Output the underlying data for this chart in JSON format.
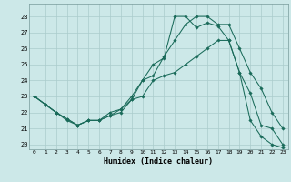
{
  "title": "",
  "xlabel": "Humidex (Indice chaleur)",
  "bg_color": "#cce8e8",
  "grid_color": "#aacccc",
  "line_color": "#1a6b5a",
  "xlim_min": -0.5,
  "xlim_max": 23.5,
  "ylim_min": 19.7,
  "ylim_max": 28.8,
  "yticks": [
    20,
    21,
    22,
    23,
    24,
    25,
    26,
    27,
    28
  ],
  "xticks": [
    0,
    1,
    2,
    3,
    4,
    5,
    6,
    7,
    8,
    9,
    10,
    11,
    12,
    13,
    14,
    15,
    16,
    17,
    18,
    19,
    20,
    21,
    22,
    23
  ],
  "line1_x": [
    0,
    1,
    2,
    3,
    4,
    5,
    6,
    7,
    8,
    9,
    10,
    11,
    12,
    13,
    14,
    15,
    16,
    17,
    18,
    19,
    20,
    21,
    22,
    23
  ],
  "line1_y": [
    23.0,
    22.5,
    22.0,
    21.6,
    21.2,
    21.5,
    21.5,
    21.8,
    22.0,
    22.8,
    24.0,
    25.0,
    25.4,
    28.0,
    28.0,
    27.3,
    27.6,
    27.4,
    26.5,
    24.5,
    23.2,
    21.2,
    21.0,
    20.0
  ],
  "line2_x": [
    0,
    1,
    2,
    3,
    4,
    5,
    6,
    7,
    8,
    9,
    10,
    11,
    12,
    13,
    14,
    15,
    16,
    17,
    18,
    19,
    20,
    21,
    22,
    23
  ],
  "line2_y": [
    23.0,
    22.5,
    22.0,
    21.6,
    21.2,
    21.5,
    21.5,
    21.8,
    22.2,
    23.0,
    24.0,
    24.3,
    25.5,
    26.5,
    27.5,
    28.0,
    28.0,
    27.5,
    27.5,
    26.0,
    24.5,
    23.5,
    22.0,
    21.0
  ],
  "line3_x": [
    0,
    1,
    2,
    3,
    4,
    5,
    6,
    7,
    8,
    9,
    10,
    11,
    12,
    13,
    14,
    15,
    16,
    17,
    18,
    19,
    20,
    21,
    22,
    23
  ],
  "line3_y": [
    23.0,
    22.5,
    22.0,
    21.5,
    21.2,
    21.5,
    21.5,
    22.0,
    22.2,
    22.8,
    23.0,
    24.0,
    24.3,
    24.5,
    25.0,
    25.5,
    26.0,
    26.5,
    26.5,
    24.5,
    21.5,
    20.5,
    20.0,
    19.8
  ]
}
